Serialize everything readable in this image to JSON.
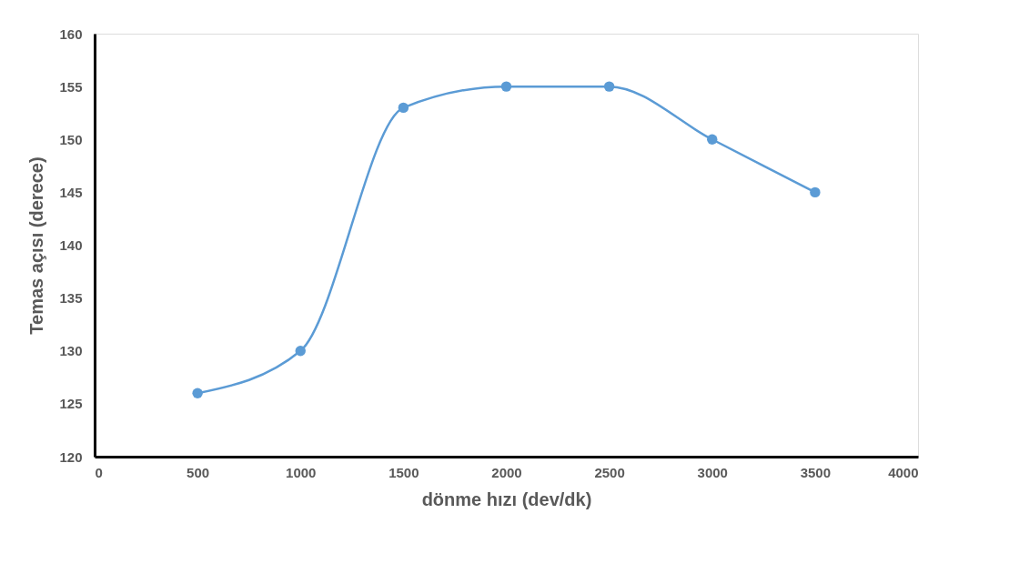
{
  "chart_data": {
    "type": "line",
    "xlabel": "dönme hızı (dev/dk)",
    "ylabel": "Temas açısı (derece)",
    "x": [
      500,
      1000,
      1500,
      2000,
      2500,
      3000,
      3500
    ],
    "series": [
      {
        "color": "#5b9bd5",
        "values": [
          126,
          130,
          153,
          155,
          155,
          150,
          145
        ]
      }
    ],
    "xlim": [
      0,
      4000
    ],
    "xticks": [
      0,
      500,
      1000,
      1500,
      2000,
      2500,
      3000,
      3500,
      4000
    ],
    "ylim": [
      120,
      160
    ],
    "yticks": [
      120,
      125,
      130,
      135,
      140,
      145,
      150,
      155,
      160
    ],
    "grid": false,
    "marker": "circle",
    "line_style": "solid"
  }
}
